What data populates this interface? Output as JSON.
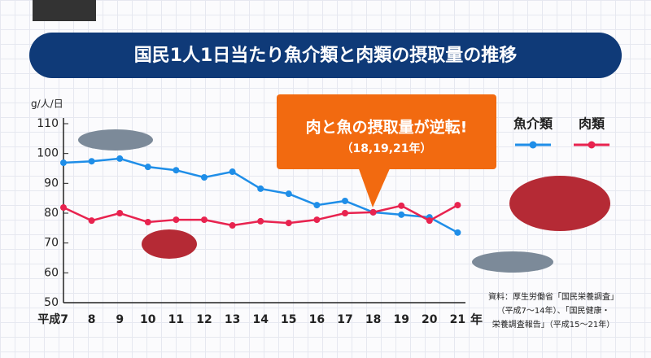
{
  "chart_data": {
    "type": "line",
    "title": "国民1人1日当たり魚介類と肉類の摂取量の推移",
    "y_label": "g/人/日",
    "x_unit": "年",
    "categories": [
      "平成7",
      "8",
      "9",
      "10",
      "11",
      "12",
      "13",
      "14",
      "15",
      "16",
      "17",
      "18",
      "19",
      "20",
      "21"
    ],
    "series": [
      {
        "name": "魚介類",
        "color": "#1f8ee8",
        "values": [
          96.9,
          97.4,
          98.3,
          95.5,
          94.4,
          92.0,
          93.9,
          88.2,
          86.5,
          82.7,
          84.1,
          80.3,
          79.5,
          78.6,
          73.5
        ]
      },
      {
        "name": "肉類",
        "color": "#e8234f",
        "values": [
          81.9,
          77.5,
          80.0,
          77.0,
          77.8,
          77.8,
          75.9,
          77.3,
          76.7,
          77.8,
          80.0,
          80.3,
          82.5,
          77.5,
          82.7
        ]
      }
    ],
    "ylim": [
      50,
      110
    ],
    "yticks": [
      50,
      60,
      70,
      80,
      90,
      100,
      110
    ],
    "annotation": {
      "title": "肉と魚の摂取量が逆転!",
      "subtitle": "（18,19,21年）"
    },
    "source": [
      "資料：厚生労働省「国民栄養調査」",
      "（平成7～14年）、「国民健康・",
      "栄養調査報告」（平成15～21年）"
    ]
  }
}
